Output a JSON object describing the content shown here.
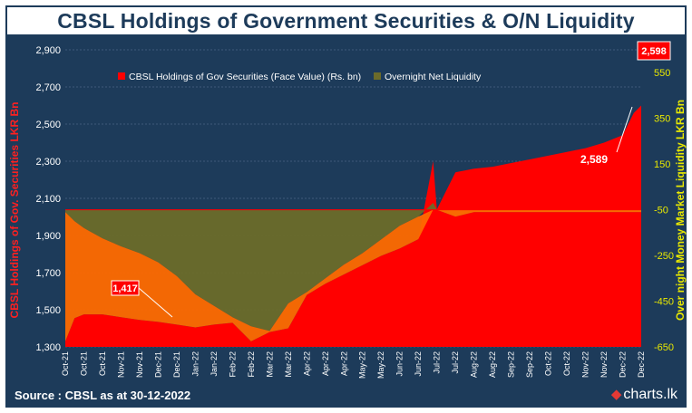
{
  "title": "CBSL Holdings of Government Securities & O/N Liquidity",
  "footer": {
    "source": "Source : CBSL as at 30-12-2022",
    "brand": "charts.lk",
    "brand_icon": "charts-logo-icon"
  },
  "colors": {
    "background": "#1d3b5a",
    "holdings": "#ff0000",
    "liquidity": "#6b6b2a",
    "overlap": "#ff6a00",
    "text": "#ffffff",
    "right_axis_text": "#e8e800"
  },
  "chart_data": {
    "type": "area",
    "legend": [
      "CBSL Holdings of  Gov Securities (Face Value)  (Rs. bn)",
      "Overnight Net Liquidity"
    ],
    "legend_position": "top-left",
    "ylabel_left": "CBSL Holdings of Gov. Securities LKR Bn",
    "ylabel_right": "Over night Money Market Liquidity LKR Bn",
    "y_left_ticks": [
      "1,300",
      "1,500",
      "1,700",
      "1,900",
      "2,100",
      "2,300",
      "2,500",
      "2,700",
      "2,900"
    ],
    "y_left_range": [
      1300,
      2900
    ],
    "y_right_ticks": [
      "-650",
      "-450",
      "-250",
      "-50",
      "150",
      "350",
      "550"
    ],
    "y_right_range": [
      -650,
      650
    ],
    "x_ticks": [
      "Oct-21",
      "Oct-21",
      "Oct-21",
      "Nov-21",
      "Nov-21",
      "Dec-21",
      "Dec-21",
      "Jan-22",
      "Jan-22",
      "Feb-22",
      "Feb-22",
      "Mar-22",
      "Mar-22",
      "Apr-22",
      "Apr-22",
      "Apr-22",
      "May-22",
      "May-22",
      "Jun-22",
      "Jun-22",
      "Jul-22",
      "Jul-22",
      "Aug-22",
      "Aug-22",
      "Sep-22",
      "Sep-22",
      "Oct-22",
      "Oct-22",
      "Nov-22",
      "Nov-22",
      "Dec-22",
      "Dec-22"
    ],
    "annotations": [
      {
        "text": "1,417",
        "x": "Dec-21",
        "y": 1417
      },
      {
        "text": "2,589",
        "x": "Dec-22",
        "y": 2589
      },
      {
        "text": "2,598",
        "x": "Dec-22",
        "y": 2598
      }
    ],
    "series": [
      {
        "name": "CBSL Holdings of  Gov Securities (Face Value)  (Rs. bn)",
        "axis": "left",
        "x": [
          0,
          0.5,
          1,
          2,
          3,
          4,
          5,
          6,
          7,
          8,
          9,
          10,
          11,
          12,
          13,
          14,
          15,
          16,
          17,
          18,
          19,
          19.8,
          20,
          21,
          22,
          23,
          24,
          25,
          26,
          27,
          28,
          29,
          30,
          30.6,
          31
        ],
        "values": [
          1330,
          1455,
          1475,
          1475,
          1460,
          1445,
          1435,
          1420,
          1405,
          1420,
          1430,
          1330,
          1380,
          1400,
          1580,
          1640,
          1690,
          1740,
          1790,
          1830,
          1880,
          2300,
          2040,
          2240,
          2260,
          2270,
          2290,
          2310,
          2330,
          2350,
          2370,
          2400,
          2440,
          2560,
          2600
        ]
      },
      {
        "name": "Overnight Net Liquidity",
        "axis": "right",
        "x": [
          0,
          0.5,
          1,
          2,
          3,
          4,
          5,
          6,
          7,
          8,
          9,
          10,
          11,
          12,
          13,
          14,
          15,
          16,
          17,
          18,
          19,
          19.8,
          20,
          21,
          22,
          23,
          24,
          25,
          26,
          27,
          28,
          29,
          30,
          30.6,
          31
        ],
        "values": [
          -60,
          -100,
          -130,
          -175,
          -210,
          -240,
          -280,
          -340,
          -420,
          -470,
          -520,
          -560,
          -580,
          -460,
          -410,
          -350,
          -290,
          -240,
          -180,
          -120,
          -80,
          -20,
          -50,
          -80,
          -60,
          -60,
          -60,
          -60,
          -60,
          -60,
          -60,
          -60,
          -60,
          -60,
          -60
        ]
      }
    ]
  }
}
